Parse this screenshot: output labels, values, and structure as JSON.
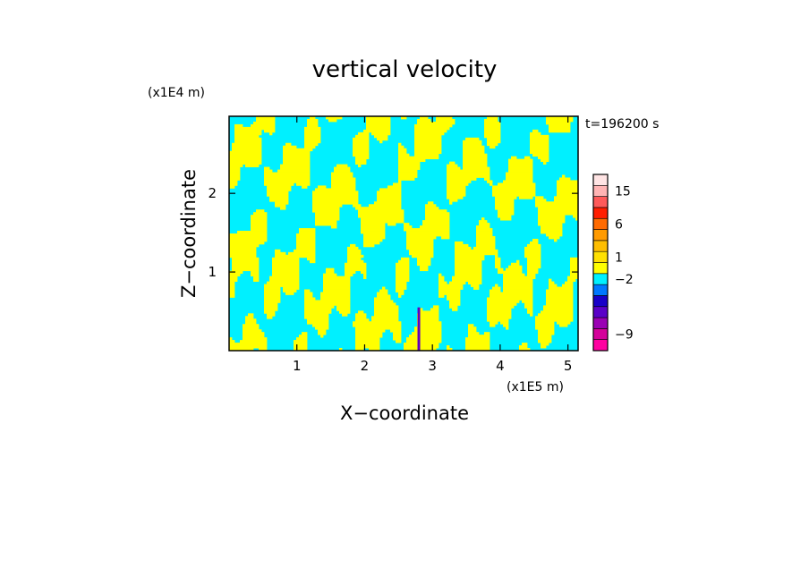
{
  "chart_data": {
    "type": "heatmap",
    "title": "vertical velocity",
    "xlabel": "X−coordinate",
    "ylabel": "Z−coordinate",
    "x_unit": "(x1E5 m)",
    "y_unit": "(x1E4 m)",
    "time_label": "t=196200 s",
    "xlim": [
      0,
      5.15
    ],
    "ylim": [
      0,
      2.98
    ],
    "x_ticks": [
      1,
      2,
      3,
      4,
      5
    ],
    "x_tick_labels": [
      "1",
      "2",
      "3",
      "4",
      "5"
    ],
    "y_ticks": [
      1,
      2
    ],
    "y_tick_labels": [
      "1",
      "2"
    ],
    "colorbar": {
      "levels": [
        {
          "color": "#ff00a0"
        },
        {
          "color": "#d4009a"
        },
        {
          "color": "#9a00b4"
        },
        {
          "color": "#5a00c8"
        },
        {
          "color": "#1800c8"
        },
        {
          "color": "#0078ff"
        },
        {
          "color": "#00f0ff"
        },
        {
          "color": "#ffff00"
        },
        {
          "color": "#ffe000"
        },
        {
          "color": "#ffbe00"
        },
        {
          "color": "#ff9a00"
        },
        {
          "color": "#ff6a00"
        },
        {
          "color": "#ff1e00"
        },
        {
          "color": "#ff5a5a"
        },
        {
          "color": "#ffb4b4"
        },
        {
          "color": "#ffe4e4"
        }
      ],
      "labels": [
        {
          "text": "15",
          "level_index": 14
        },
        {
          "text": "6",
          "level_index": 11
        },
        {
          "text": "1",
          "level_index": 8
        },
        {
          "text": "−2",
          "level_index": 6
        },
        {
          "text": "−9",
          "level_index": 1
        }
      ]
    },
    "field_colors": {
      "positive": "#ffff00",
      "negative": "#00f0ff",
      "updraft_core": "#6000c0"
    }
  }
}
